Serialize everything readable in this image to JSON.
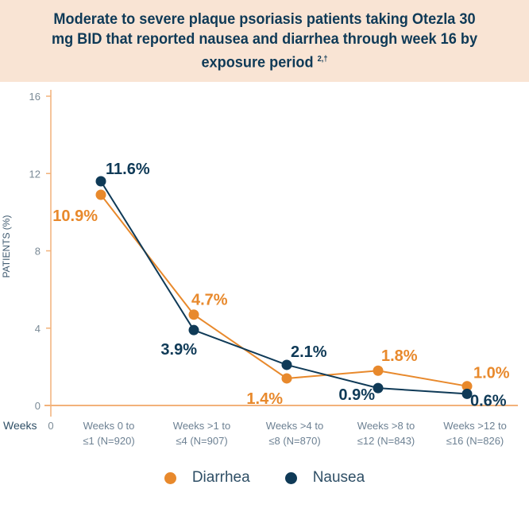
{
  "chart_data": {
    "type": "line",
    "title": "Moderate to severe plaque psoriasis patients taking Otezla 30 mg BID that reported nausea and diarrhea through week 16 by exposure period",
    "title_superscript": "2,†",
    "ylabel": "PATIENTS (%)",
    "xlabel": "Weeks",
    "x_origin_label": "0",
    "ylim": [
      0,
      16
    ],
    "yticks": [
      "0",
      "4",
      "8",
      "12",
      "16"
    ],
    "categories": [
      [
        "Weeks 0 to",
        "≤1 (N=920)"
      ],
      [
        "Weeks >1 to",
        "≤4 (N=907)"
      ],
      [
        "Weeks >4 to",
        "≤8 (N=870)"
      ],
      [
        "Weeks >8 to",
        "≤12 (N=843)"
      ],
      [
        "Weeks >12 to",
        "≤16 (N=826)"
      ]
    ],
    "series": [
      {
        "name": "Diarrhea",
        "color": "#e8892c",
        "values": [
          10.9,
          4.7,
          1.4,
          1.8,
          1.0
        ],
        "labels": [
          "10.9%",
          "4.7%",
          "1.4%",
          "1.8%",
          "1.0%"
        ]
      },
      {
        "name": "Nausea",
        "color": "#0f3a57",
        "values": [
          11.6,
          3.9,
          2.1,
          0.9,
          0.6
        ],
        "labels": [
          "11.6%",
          "3.9%",
          "2.1%",
          "0.9%",
          "0.6%"
        ]
      }
    ],
    "grid": false,
    "legend": "bottom",
    "axis_color": "#f2b27a",
    "header_background": "#f9e4d4"
  }
}
